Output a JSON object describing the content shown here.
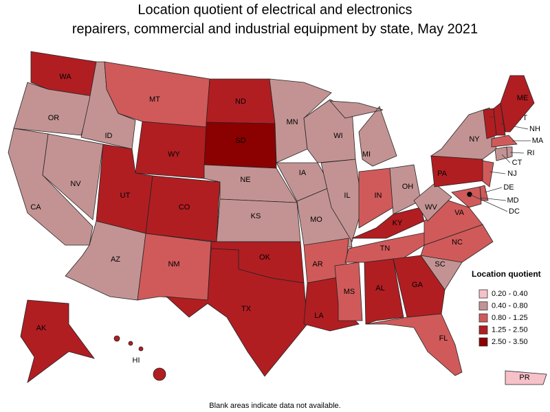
{
  "title_lines": [
    "Location quotient of electrical and electronics",
    "repairers, commercial and industrial equipment by state, May 2021"
  ],
  "legend": {
    "title": "Location quotient",
    "items": [
      {
        "label": "0.20 - 0.40",
        "color": "#f7c1c9"
      },
      {
        "label": "0.40 - 0.80",
        "color": "#c39393"
      },
      {
        "label": "0.80 - 1.25",
        "color": "#d05a5a"
      },
      {
        "label": "1.25 - 2.50",
        "color": "#b01e22"
      },
      {
        "label": "2.50 - 3.50",
        "color": "#8b0000"
      }
    ]
  },
  "states": [
    {
      "abbr": "WA",
      "bin": 3
    },
    {
      "abbr": "OR",
      "bin": 1
    },
    {
      "abbr": "CA",
      "bin": 1
    },
    {
      "abbr": "NV",
      "bin": 1
    },
    {
      "abbr": "ID",
      "bin": 1
    },
    {
      "abbr": "MT",
      "bin": 2
    },
    {
      "abbr": "WY",
      "bin": 3
    },
    {
      "abbr": "UT",
      "bin": 3
    },
    {
      "abbr": "CO",
      "bin": 3
    },
    {
      "abbr": "AZ",
      "bin": 1
    },
    {
      "abbr": "NM",
      "bin": 2
    },
    {
      "abbr": "ND",
      "bin": 3
    },
    {
      "abbr": "SD",
      "bin": 4
    },
    {
      "abbr": "NE",
      "bin": 1
    },
    {
      "abbr": "KS",
      "bin": 1
    },
    {
      "abbr": "OK",
      "bin": 3
    },
    {
      "abbr": "TX",
      "bin": 3
    },
    {
      "abbr": "MN",
      "bin": 1
    },
    {
      "abbr": "IA",
      "bin": 1
    },
    {
      "abbr": "MO",
      "bin": 1
    },
    {
      "abbr": "AR",
      "bin": 2
    },
    {
      "abbr": "LA",
      "bin": 3
    },
    {
      "abbr": "WI",
      "bin": 1
    },
    {
      "abbr": "IL",
      "bin": 1
    },
    {
      "abbr": "MI",
      "bin": 1
    },
    {
      "abbr": "IN",
      "bin": 2
    },
    {
      "abbr": "OH",
      "bin": 1
    },
    {
      "abbr": "KY",
      "bin": 3
    },
    {
      "abbr": "TN",
      "bin": 2
    },
    {
      "abbr": "MS",
      "bin": 2
    },
    {
      "abbr": "AL",
      "bin": 3
    },
    {
      "abbr": "GA",
      "bin": 3
    },
    {
      "abbr": "FL",
      "bin": 2
    },
    {
      "abbr": "SC",
      "bin": 1
    },
    {
      "abbr": "NC",
      "bin": 2
    },
    {
      "abbr": "VA",
      "bin": 2
    },
    {
      "abbr": "WV",
      "bin": 1
    },
    {
      "abbr": "PA",
      "bin": 3
    },
    {
      "abbr": "NY",
      "bin": 1
    },
    {
      "abbr": "VT",
      "bin": 3
    },
    {
      "abbr": "NH",
      "bin": 3
    },
    {
      "abbr": "ME",
      "bin": 3
    },
    {
      "abbr": "MA",
      "bin": 2
    },
    {
      "abbr": "CT",
      "bin": 1
    },
    {
      "abbr": "RI",
      "bin": 1
    },
    {
      "abbr": "NJ",
      "bin": 2
    },
    {
      "abbr": "DE",
      "bin": 2
    },
    {
      "abbr": "MD",
      "bin": 2
    },
    {
      "abbr": "DC",
      "bin": 4
    },
    {
      "abbr": "AK",
      "bin": 3
    },
    {
      "abbr": "HI",
      "bin": 3
    },
    {
      "abbr": "PR",
      "bin": 0
    }
  ],
  "footnote": "Blank areas indicate data not available."
}
